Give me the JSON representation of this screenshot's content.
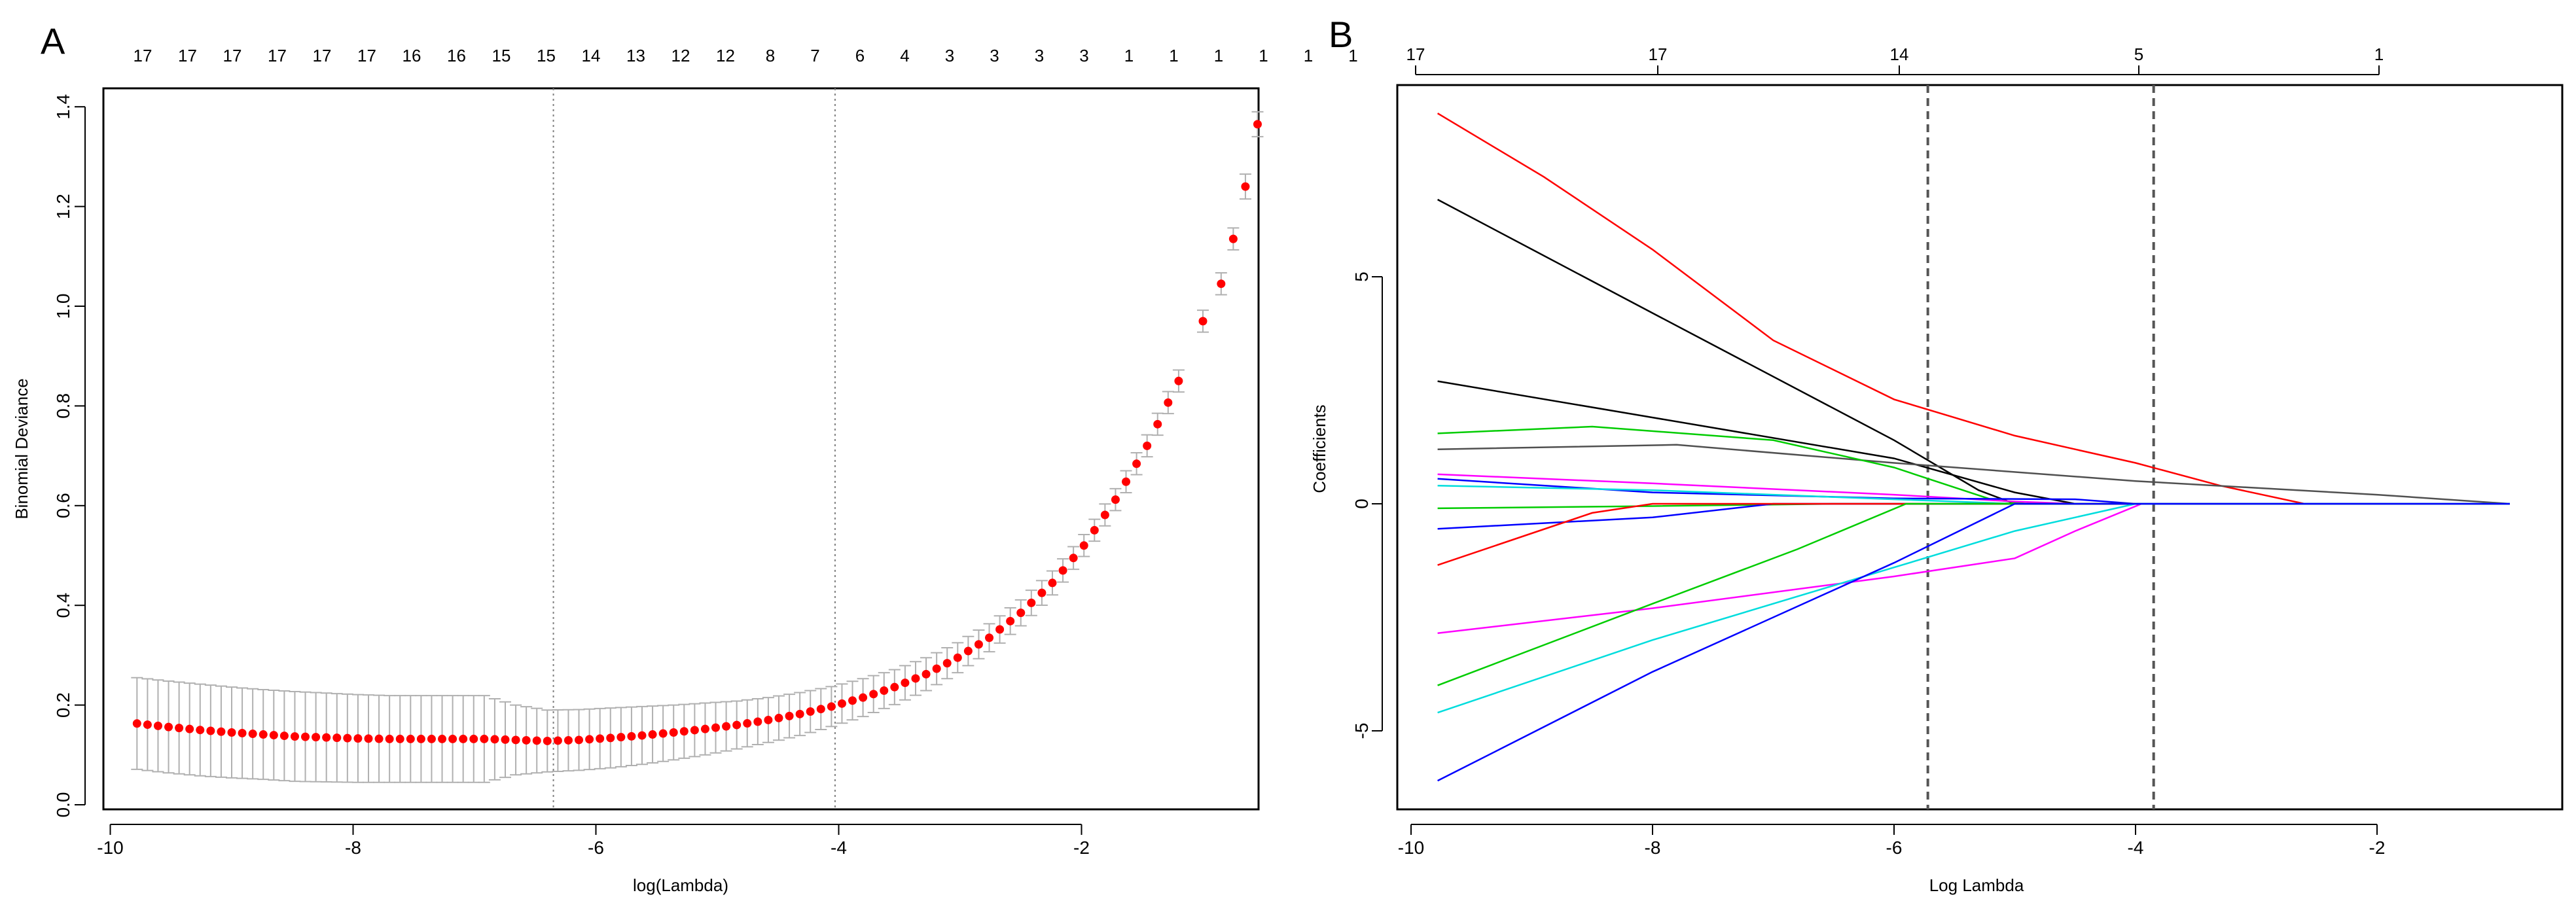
{
  "chart_data": [
    {
      "panel_label": "A",
      "type": "scatter",
      "xlabel": "log(Lambda)",
      "ylabel": "Binomial Deviance",
      "xlim": [
        -10.1,
        -0.3
      ],
      "ylim": [
        0.0,
        1.45
      ],
      "x_ticks": [
        "-10",
        "-8",
        "-6",
        "-4",
        "-2"
      ],
      "y_ticks": [
        "0.0",
        "0.2",
        "0.4",
        "0.6",
        "0.8",
        "1.0",
        "1.2",
        "1.4"
      ],
      "top_labels": [
        "17",
        "17",
        "17",
        "17",
        "17",
        "17",
        "16",
        "16",
        "15",
        "15",
        "14",
        "13",
        "12",
        "12",
        "8",
        "7",
        "6",
        "4",
        "3",
        "3",
        "3",
        "3",
        "1",
        "1",
        "1",
        "1",
        "1",
        "1"
      ],
      "vlines": [
        -6.35,
        -4.03
      ],
      "colors": {
        "point": "#ff0000",
        "errorbar": "#b0b0b0",
        "vline": "#808080"
      },
      "points": [
        [
          -9.78,
          0.163
        ],
        [
          -9.52,
          0.156
        ],
        [
          -9.26,
          0.15
        ],
        [
          -9.0,
          0.145
        ],
        [
          -8.74,
          0.141
        ],
        [
          -8.48,
          0.137
        ],
        [
          -8.22,
          0.135
        ],
        [
          -7.96,
          0.133
        ],
        [
          -7.7,
          0.132
        ],
        [
          -7.44,
          0.132
        ],
        [
          -7.18,
          0.132
        ],
        [
          -6.92,
          0.132
        ],
        [
          -6.66,
          0.13
        ],
        [
          -6.4,
          0.128
        ],
        [
          -6.14,
          0.13
        ],
        [
          -5.88,
          0.134
        ],
        [
          -5.62,
          0.139
        ],
        [
          -5.36,
          0.145
        ],
        [
          -5.1,
          0.152
        ],
        [
          -4.84,
          0.16
        ],
        [
          -4.58,
          0.17
        ],
        [
          -4.32,
          0.182
        ],
        [
          -4.06,
          0.197
        ],
        [
          -3.8,
          0.215
        ],
        [
          -3.54,
          0.236
        ],
        [
          -3.28,
          0.262
        ],
        [
          -3.02,
          0.295
        ],
        [
          -2.76,
          0.335
        ],
        [
          -2.5,
          0.385
        ],
        [
          -2.24,
          0.445
        ],
        [
          -1.98,
          0.52
        ],
        [
          -1.72,
          0.612
        ],
        [
          -1.46,
          0.72
        ],
        [
          -1.2,
          0.85
        ],
        [
          -1.0,
          0.97
        ],
        [
          -0.85,
          1.045
        ],
        [
          -0.75,
          1.135
        ],
        [
          -0.65,
          1.24
        ],
        [
          -0.55,
          1.365
        ]
      ],
      "ci_halfwidth": [
        0.092,
        0.092,
        0.092,
        0.091,
        0.09,
        0.09,
        0.089,
        0.088,
        0.087,
        0.087,
        0.087,
        0.087,
        0.07,
        0.062,
        0.061,
        0.06,
        0.058,
        0.055,
        0.052,
        0.048,
        0.045,
        0.043,
        0.04,
        0.038,
        0.035,
        0.033,
        0.03,
        0.028,
        0.026,
        0.024,
        0.022,
        0.022,
        0.022,
        0.022,
        0.022,
        0.022,
        0.022,
        0.025,
        0.025
      ]
    },
    {
      "panel_label": "B",
      "type": "line",
      "xlabel": "Log Lambda",
      "ylabel": "Coefficients",
      "xlim": [
        -10.1,
        -0.3
      ],
      "ylim": [
        -6.8,
        9.2
      ],
      "x_ticks": [
        "-10",
        "-8",
        "-6",
        "-4",
        "-2"
      ],
      "y_ticks": [
        "-5",
        "0",
        "5"
      ],
      "top_labels": [
        "17",
        "17",
        "14",
        "5",
        "1"
      ],
      "vlines": [
        -5.72,
        -3.85
      ],
      "series": [
        {
          "name": "red-high",
          "color": "#ff0000",
          "points": [
            [
              -9.78,
              8.6
            ],
            [
              -8.9,
              7.2
            ],
            [
              -8.0,
              5.6
            ],
            [
              -7.0,
              3.6
            ],
            [
              -6.0,
              2.3
            ],
            [
              -5.0,
              1.5
            ],
            [
              -4.0,
              0.9
            ],
            [
              -3.3,
              0.4
            ],
            [
              -2.6,
              0.0
            ],
            [
              -0.9,
              0.0
            ]
          ]
        },
        {
          "name": "black-high",
          "color": "#000000",
          "points": [
            [
              -9.78,
              6.7
            ],
            [
              -8.0,
              4.2
            ],
            [
              -6.0,
              1.4
            ],
            [
              -5.3,
              0.3
            ],
            [
              -5.0,
              0.0
            ],
            [
              -0.9,
              0.0
            ]
          ]
        },
        {
          "name": "black-mid",
          "color": "#000000",
          "points": [
            [
              -9.78,
              2.7
            ],
            [
              -8.0,
              1.9
            ],
            [
              -6.0,
              1.0
            ],
            [
              -5.0,
              0.25
            ],
            [
              -4.5,
              0.0
            ],
            [
              -0.9,
              0.0
            ]
          ]
        },
        {
          "name": "gray-long",
          "color": "#505050",
          "points": [
            [
              -9.78,
              1.2
            ],
            [
              -7.8,
              1.3
            ],
            [
              -6.0,
              0.9
            ],
            [
              -4.0,
              0.5
            ],
            [
              -2.0,
              0.2
            ],
            [
              -0.9,
              0.0
            ]
          ]
        },
        {
          "name": "green-high",
          "color": "#00cc00",
          "points": [
            [
              -9.78,
              1.55
            ],
            [
              -8.5,
              1.7
            ],
            [
              -7.0,
              1.4
            ],
            [
              -6.0,
              0.8
            ],
            [
              -5.2,
              0.1
            ],
            [
              -4.9,
              0.0
            ],
            [
              -0.9,
              0.0
            ]
          ]
        },
        {
          "name": "magenta-high",
          "color": "#ff00ff",
          "points": [
            [
              -9.78,
              0.65
            ],
            [
              -8.0,
              0.45
            ],
            [
              -6.0,
              0.2
            ],
            [
              -5.0,
              0.05
            ],
            [
              -4.5,
              0.0
            ],
            [
              -0.9,
              0.0
            ]
          ]
        },
        {
          "name": "blue-small",
          "color": "#0000ff",
          "points": [
            [
              -9.78,
              0.55
            ],
            [
              -8.0,
              0.25
            ],
            [
              -6.0,
              0.12
            ],
            [
              -4.5,
              0.1
            ],
            [
              -4.0,
              0.0
            ],
            [
              -0.9,
              0.0
            ]
          ]
        },
        {
          "name": "cyan-small",
          "color": "#00dddd",
          "points": [
            [
              -9.78,
              0.4
            ],
            [
              -8.0,
              0.3
            ],
            [
              -6.0,
              0.1
            ],
            [
              -5.0,
              0.0
            ],
            [
              -0.9,
              0.0
            ]
          ]
        },
        {
          "name": "green-flat",
          "color": "#00cc00",
          "points": [
            [
              -9.78,
              -0.1
            ],
            [
              -8.0,
              -0.05
            ],
            [
              -6.5,
              0.0
            ],
            [
              -0.9,
              0.0
            ]
          ]
        },
        {
          "name": "blue-neg-small",
          "color": "#0000ff",
          "points": [
            [
              -9.78,
              -0.55
            ],
            [
              -8.0,
              -0.3
            ],
            [
              -7.0,
              0.0
            ],
            [
              -0.9,
              0.0
            ]
          ]
        },
        {
          "name": "red-neg",
          "color": "#ff0000",
          "points": [
            [
              -9.78,
              -1.35
            ],
            [
              -8.5,
              -0.2
            ],
            [
              -8.0,
              0.0
            ],
            [
              -0.9,
              0.0
            ]
          ]
        },
        {
          "name": "magenta-neg",
          "color": "#ff00ff",
          "points": [
            [
              -9.78,
              -2.85
            ],
            [
              -8.0,
              -2.3
            ],
            [
              -6.0,
              -1.6
            ],
            [
              -5.0,
              -1.2
            ],
            [
              -4.5,
              -0.6
            ],
            [
              -3.95,
              0.0
            ],
            [
              -0.9,
              0.0
            ]
          ]
        },
        {
          "name": "green-neg",
          "color": "#00cc00",
          "points": [
            [
              -9.78,
              -4.0
            ],
            [
              -8.0,
              -2.2
            ],
            [
              -6.8,
              -1.0
            ],
            [
              -5.9,
              0.0
            ],
            [
              -0.9,
              0.0
            ]
          ]
        },
        {
          "name": "cyan-neg",
          "color": "#00dddd",
          "points": [
            [
              -9.78,
              -4.6
            ],
            [
              -8.0,
              -3.0
            ],
            [
              -6.0,
              -1.4
            ],
            [
              -5.0,
              -0.6
            ],
            [
              -4.0,
              0.0
            ],
            [
              -0.9,
              0.0
            ]
          ]
        },
        {
          "name": "blue-neg",
          "color": "#0000ff",
          "points": [
            [
              -9.78,
              -6.1
            ],
            [
              -8.0,
              -3.7
            ],
            [
              -6.0,
              -1.3
            ],
            [
              -5.0,
              0.0
            ],
            [
              -0.9,
              0.0
            ]
          ]
        }
      ],
      "colors": {
        "vline": "#555555"
      }
    }
  ]
}
